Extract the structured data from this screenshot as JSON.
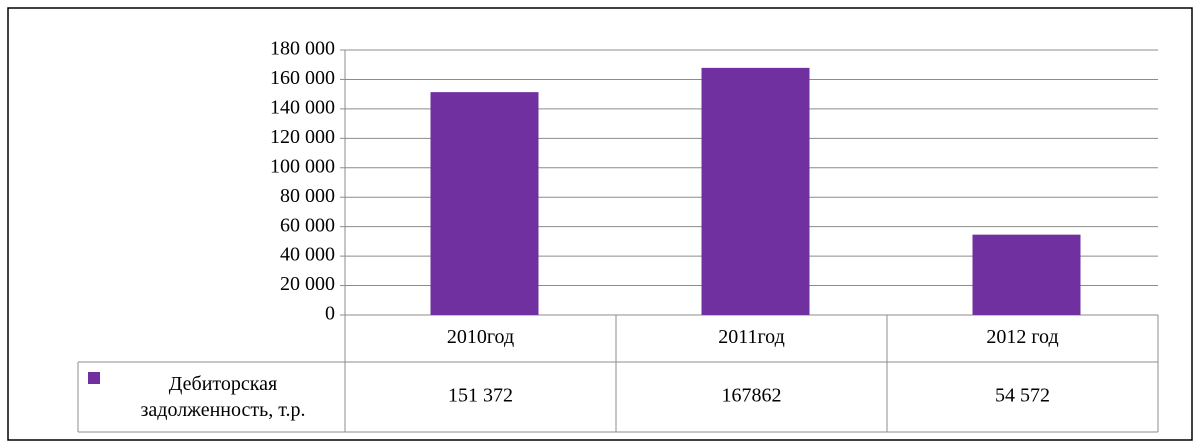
{
  "chart_data": {
    "type": "bar",
    "categories": [
      "2010год",
      "2011год",
      "2012 год"
    ],
    "series": [
      {
        "name": "Дебиторская задолженность, т.р.",
        "color": "#7030a0",
        "values": [
          151372,
          167862,
          54572
        ],
        "value_labels": [
          "151 372",
          "167862",
          "54 572"
        ]
      }
    ],
    "ylim": [
      0,
      180000
    ],
    "yticks": [
      0,
      {
        "value": 20000,
        "label": "20 000"
      },
      {
        "value": 40000,
        "label": "40 000"
      },
      {
        "value": 60000,
        "label": "60 000"
      },
      {
        "value": 80000,
        "label": "80 000"
      },
      {
        "value": 100000,
        "label": "100 000"
      },
      {
        "value": 120000,
        "label": "120 000"
      },
      {
        "value": 140000,
        "label": "140 000"
      },
      {
        "value": 160000,
        "label": "160 000"
      },
      {
        "value": 180000,
        "label": "180 000"
      }
    ],
    "grid": true,
    "legend": "table"
  }
}
